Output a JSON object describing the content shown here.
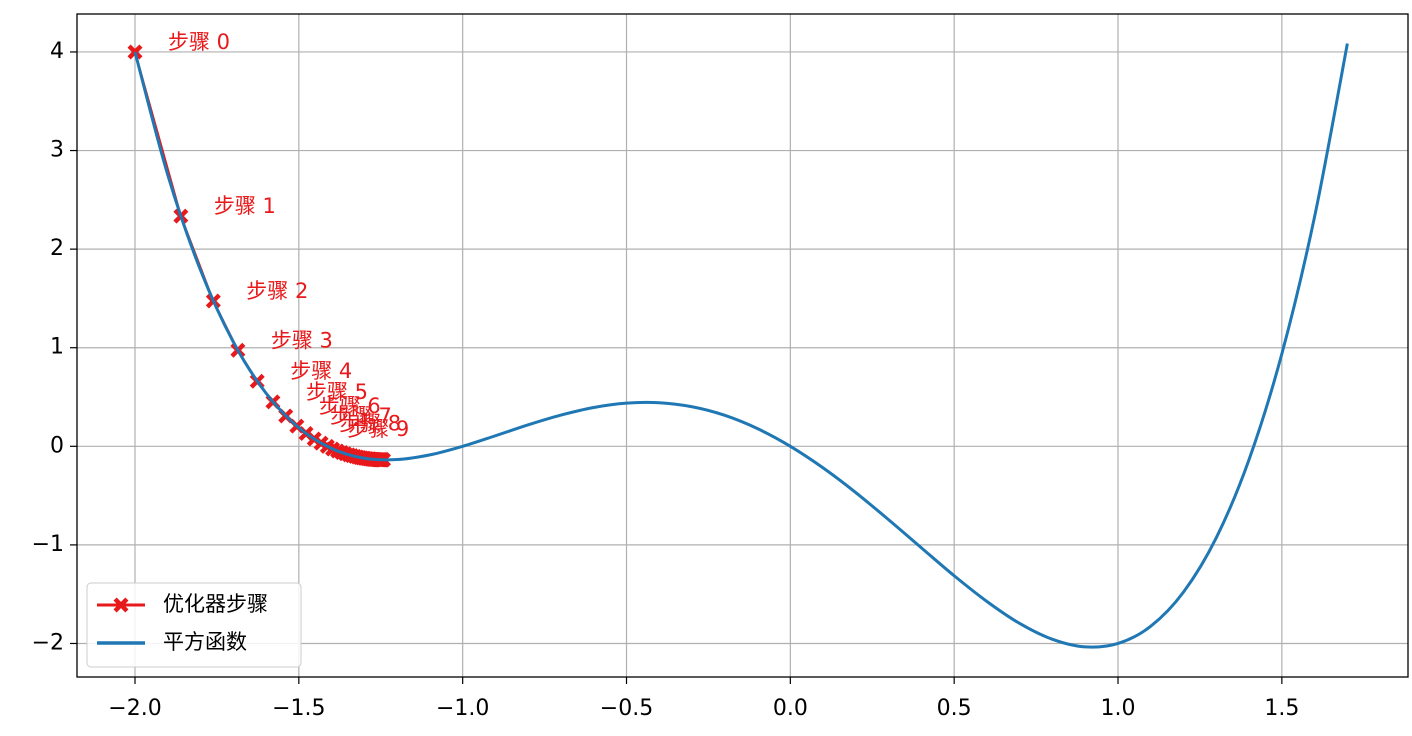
{
  "chart_data": {
    "type": "line",
    "xlim": [
      -2.177,
      1.885
    ],
    "ylim": [
      -2.34,
      4.385
    ],
    "xticks": [
      {
        "value": -2,
        "label": "−2.0"
      },
      {
        "value": -1.5,
        "label": "−1.5"
      },
      {
        "value": -1,
        "label": "−1.0"
      },
      {
        "value": -0.5,
        "label": "−0.5"
      },
      {
        "value": 0,
        "label": "0.0"
      },
      0.5,
      {
        "value": 1,
        "label": "1.0"
      },
      1.5
    ],
    "yticks": [
      {
        "value": -2,
        "label": "−2"
      },
      {
        "value": -1,
        "label": "−1"
      },
      0,
      1,
      2,
      3,
      4
    ],
    "grid": true,
    "legend": "lower left",
    "series": [
      {
        "name": "优化器步骤",
        "color": "#e8191b",
        "marker": "X",
        "x": [
          -2,
          -1.86,
          -1.761,
          -1.686,
          -1.627,
          -1.579,
          -1.54,
          -1.506,
          -1.478,
          -1.453,
          -1.432,
          -1.413,
          -1.397,
          -1.382,
          -1.369,
          -1.358,
          -1.347,
          -1.338,
          -1.329,
          -1.321,
          -1.314,
          -1.308,
          -1.302,
          -1.297,
          -1.292,
          -1.287,
          -1.283,
          -1.279,
          -1.276,
          -1.273,
          -1.27,
          -1.267,
          -1.265,
          -1.262,
          -1.26,
          -1.258,
          -1.256,
          -1.255,
          -1.253,
          -1.252,
          -1.25,
          -1.249,
          -1.248,
          -1.247,
          -1.246,
          -1.245,
          -1.244,
          -1.243,
          -1.242,
          -1.242
        ],
        "values": [
          4,
          2.335,
          1.474,
          0.974,
          0.66,
          0.451,
          0.308,
          0.205,
          0.13,
          0.074,
          0.032,
          -0.001,
          -0.027,
          -0.047,
          -0.063,
          -0.076,
          -0.087,
          -0.095,
          -0.102,
          -0.108,
          -0.113,
          -0.117,
          -0.12,
          -0.123,
          -0.125,
          -0.127,
          -0.128,
          -0.13,
          -0.131,
          -0.132,
          -0.133,
          -0.133,
          -0.134,
          -0.135,
          -0.135,
          -0.135,
          -0.136,
          -0.136,
          -0.136,
          -0.137,
          -0.137,
          -0.137,
          -0.137,
          -0.137,
          -0.137,
          -0.137,
          -0.137,
          -0.137,
          -0.137,
          -0.138
        ]
      },
      {
        "name": "平方函数",
        "color": "#1f77b4",
        "x": [
          -2,
          -1.9,
          -1.8,
          -1.7,
          -1.6,
          -1.5,
          -1.4,
          -1.3,
          -1.2,
          -1.1,
          -1,
          -0.9,
          -0.8,
          -0.7,
          -0.6,
          -0.5,
          -0.4,
          -0.3,
          -0.2,
          -0.1,
          0,
          0.1,
          0.2,
          0.3,
          0.4,
          0.5,
          0.6,
          0.7,
          0.8,
          0.9,
          1,
          1.1,
          1.2,
          1.3,
          1.4,
          1.5,
          1.6,
          1.7
        ],
        "values": [
          4,
          2.753,
          1.786,
          1.059,
          0.538,
          0.188,
          -0.022,
          -0.121,
          -0.134,
          -0.087,
          0,
          0.107,
          0.218,
          0.317,
          0.394,
          0.438,
          0.442,
          0.401,
          0.314,
          0.179,
          0,
          -0.219,
          -0.47,
          -0.745,
          -1.03,
          -1.313,
          -1.574,
          -1.797,
          -1.958,
          -2.035,
          -2,
          -1.825,
          -1.478,
          -0.927,
          -0.134,
          0.938,
          2.33,
          4.085
        ]
      }
    ],
    "annotations": [
      "步骤 0",
      "步骤 1",
      "步骤 2",
      "步骤 3",
      "步骤 4",
      "步骤 5",
      "步骤 6",
      "步骤 7",
      "步骤 8",
      "步骤 9"
    ]
  }
}
